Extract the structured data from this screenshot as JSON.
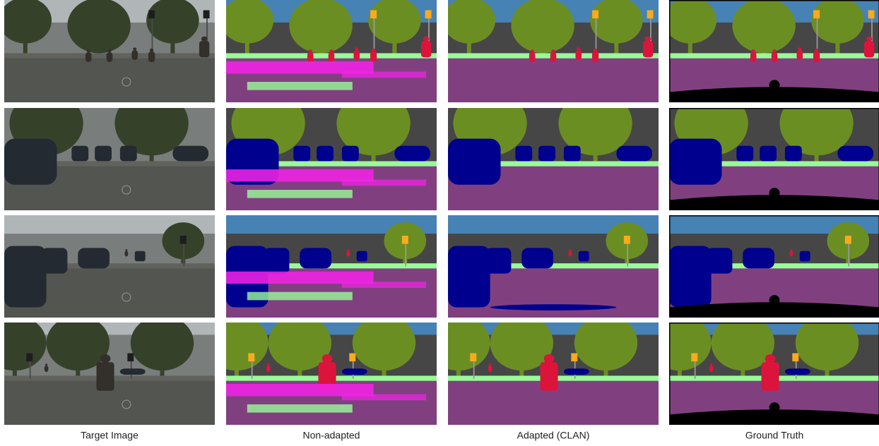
{
  "captions": [
    "Target Image",
    "Non-adapted",
    "Adapted (CLAN)",
    "Ground Truth"
  ]
}
